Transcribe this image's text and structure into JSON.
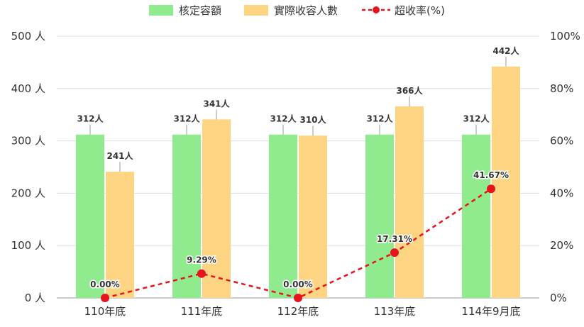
{
  "chart_data": {
    "type": "bar",
    "categories": [
      "110年底",
      "111年底",
      "112年底",
      "113年底",
      "114年9月底"
    ],
    "series": [
      {
        "name": "核定容額",
        "type": "bar",
        "axis": "left",
        "color": "#90ea8e",
        "values": [
          312,
          312,
          312,
          312,
          312
        ],
        "labels": [
          "312人",
          "312人",
          "312人",
          "312人",
          "312人"
        ]
      },
      {
        "name": "實際收容人數",
        "type": "bar",
        "axis": "left",
        "color": "#fdd582",
        "values": [
          241,
          341,
          310,
          366,
          442
        ],
        "labels": [
          "241人",
          "341人",
          "310人",
          "366人",
          "442人"
        ]
      },
      {
        "name": "超收率(%)",
        "type": "line",
        "axis": "right",
        "color": "#e8141c",
        "line_style": "dashed",
        "values": [
          0.0,
          9.29,
          0.0,
          17.31,
          41.67
        ],
        "labels": [
          "0.00%",
          "9.29%",
          "0.00%",
          "17.31%",
          "41.67%"
        ]
      }
    ],
    "y_left": {
      "range": [
        0,
        500
      ],
      "ticks": [
        0,
        100,
        200,
        300,
        400,
        500
      ],
      "tick_labels": [
        "0 人",
        "100 人",
        "200 人",
        "300 人",
        "400 人",
        "500 人"
      ]
    },
    "y_right": {
      "range": [
        0,
        100
      ],
      "ticks": [
        0,
        20,
        40,
        60,
        80,
        100
      ],
      "tick_labels": [
        "0%",
        "20%",
        "40%",
        "60%",
        "80%",
        "100%"
      ]
    },
    "legend_position": "top-center",
    "grid": true
  }
}
